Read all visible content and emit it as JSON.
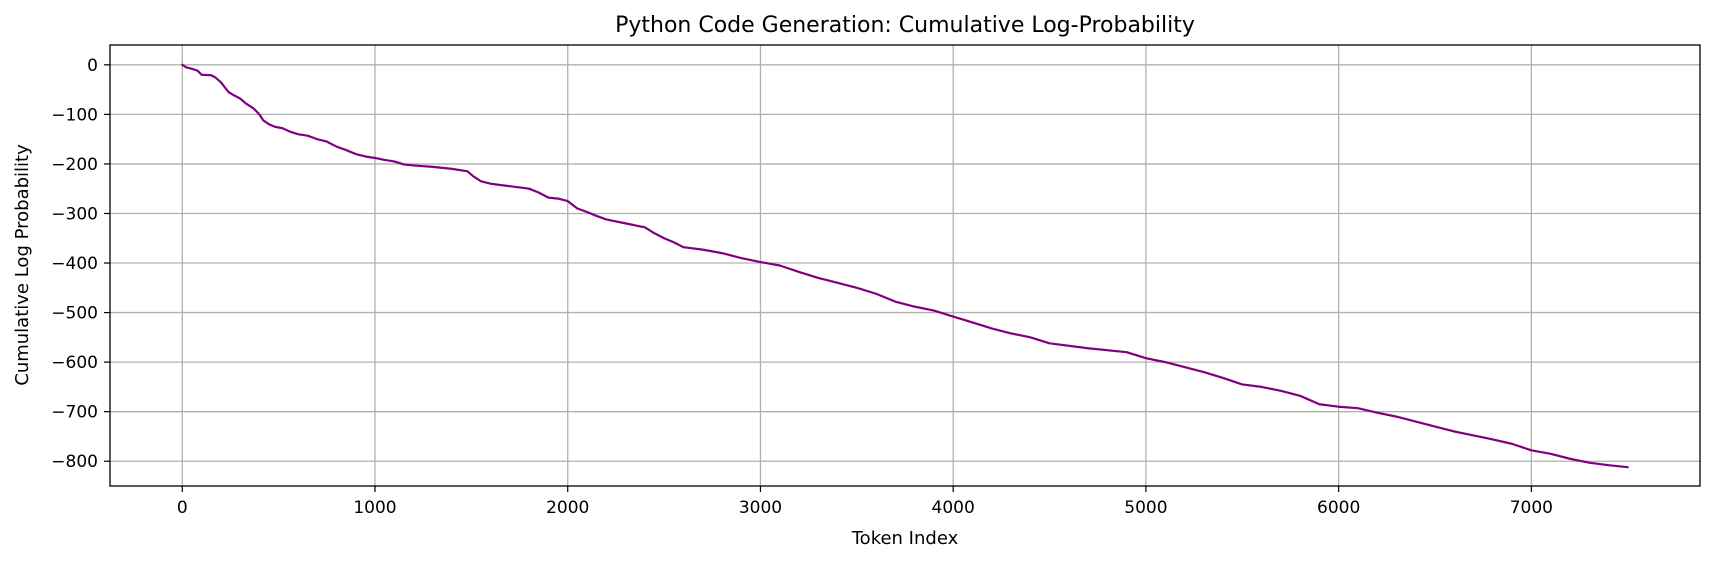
{
  "chart_data": {
    "type": "line",
    "title": "Python Code Generation: Cumulative Log-Probability",
    "xlabel": "Token Index",
    "ylabel": "Cumulative Log Probability",
    "xlim": [
      -375,
      7875
    ],
    "ylim": [
      -850,
      40
    ],
    "xticks": [
      0,
      1000,
      2000,
      3000,
      4000,
      5000,
      6000,
      7000
    ],
    "xtick_labels": [
      "0",
      "1000",
      "2000",
      "3000",
      "4000",
      "5000",
      "6000",
      "7000"
    ],
    "yticks": [
      0,
      -100,
      -200,
      -300,
      -400,
      -500,
      -600,
      -700,
      -800
    ],
    "ytick_labels": [
      "0",
      "−100",
      "−200",
      "−300",
      "−400",
      "−500",
      "−600",
      "−700",
      "−800"
    ],
    "grid": true,
    "series": [
      {
        "color": "#800080",
        "points": [
          [
            0,
            0
          ],
          [
            20,
            -5
          ],
          [
            50,
            -8
          ],
          [
            80,
            -12
          ],
          [
            100,
            -20
          ],
          [
            150,
            -21
          ],
          [
            170,
            -25
          ],
          [
            200,
            -35
          ],
          [
            220,
            -45
          ],
          [
            240,
            -55
          ],
          [
            270,
            -62
          ],
          [
            300,
            -68
          ],
          [
            330,
            -78
          ],
          [
            370,
            -88
          ],
          [
            400,
            -100
          ],
          [
            420,
            -112
          ],
          [
            450,
            -120
          ],
          [
            480,
            -125
          ],
          [
            520,
            -128
          ],
          [
            560,
            -135
          ],
          [
            600,
            -140
          ],
          [
            650,
            -143
          ],
          [
            700,
            -150
          ],
          [
            750,
            -155
          ],
          [
            800,
            -165
          ],
          [
            850,
            -172
          ],
          [
            900,
            -180
          ],
          [
            950,
            -185
          ],
          [
            1000,
            -188
          ],
          [
            1050,
            -192
          ],
          [
            1100,
            -195
          ],
          [
            1150,
            -201
          ],
          [
            1200,
            -203
          ],
          [
            1300,
            -206
          ],
          [
            1400,
            -210
          ],
          [
            1480,
            -215
          ],
          [
            1510,
            -225
          ],
          [
            1550,
            -235
          ],
          [
            1600,
            -240
          ],
          [
            1700,
            -245
          ],
          [
            1800,
            -250
          ],
          [
            1850,
            -258
          ],
          [
            1900,
            -268
          ],
          [
            1950,
            -270
          ],
          [
            2000,
            -275
          ],
          [
            2050,
            -290
          ],
          [
            2100,
            -297
          ],
          [
            2150,
            -305
          ],
          [
            2200,
            -312
          ],
          [
            2300,
            -320
          ],
          [
            2400,
            -328
          ],
          [
            2450,
            -340
          ],
          [
            2500,
            -350
          ],
          [
            2550,
            -358
          ],
          [
            2600,
            -368
          ],
          [
            2700,
            -373
          ],
          [
            2800,
            -380
          ],
          [
            2900,
            -390
          ],
          [
            3000,
            -398
          ],
          [
            3100,
            -405
          ],
          [
            3200,
            -418
          ],
          [
            3300,
            -430
          ],
          [
            3400,
            -440
          ],
          [
            3500,
            -450
          ],
          [
            3600,
            -462
          ],
          [
            3700,
            -478
          ],
          [
            3800,
            -488
          ],
          [
            3900,
            -496
          ],
          [
            4000,
            -508
          ],
          [
            4100,
            -520
          ],
          [
            4200,
            -532
          ],
          [
            4300,
            -542
          ],
          [
            4400,
            -550
          ],
          [
            4500,
            -562
          ],
          [
            4700,
            -572
          ],
          [
            4900,
            -580
          ],
          [
            5000,
            -592
          ],
          [
            5100,
            -600
          ],
          [
            5200,
            -610
          ],
          [
            5300,
            -620
          ],
          [
            5400,
            -632
          ],
          [
            5500,
            -645
          ],
          [
            5600,
            -650
          ],
          [
            5700,
            -658
          ],
          [
            5800,
            -668
          ],
          [
            5900,
            -685
          ],
          [
            6000,
            -690
          ],
          [
            6100,
            -693
          ],
          [
            6200,
            -702
          ],
          [
            6300,
            -710
          ],
          [
            6400,
            -720
          ],
          [
            6500,
            -730
          ],
          [
            6600,
            -740
          ],
          [
            6700,
            -748
          ],
          [
            6800,
            -756
          ],
          [
            6900,
            -765
          ],
          [
            7000,
            -778
          ],
          [
            7100,
            -785
          ],
          [
            7200,
            -795
          ],
          [
            7300,
            -803
          ],
          [
            7400,
            -808
          ],
          [
            7500,
            -812
          ]
        ]
      }
    ]
  }
}
